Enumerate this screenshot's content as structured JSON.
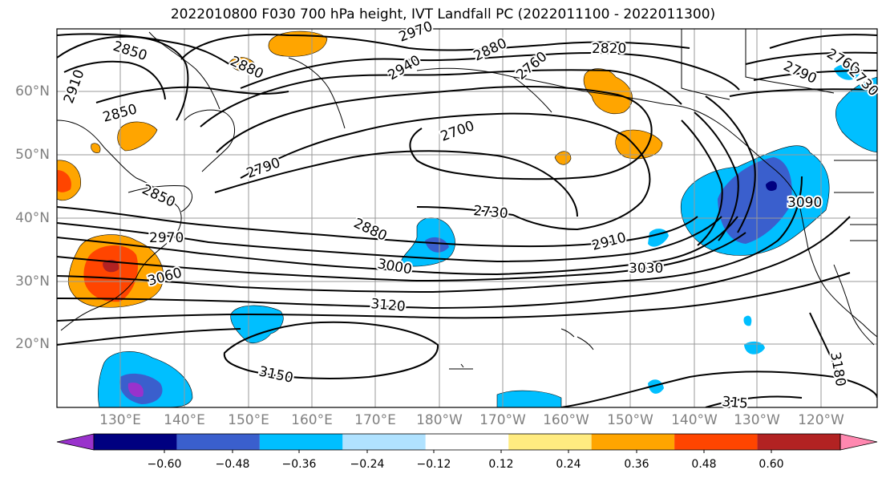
{
  "title": "2022010800 F030 700 hPa height, IVT Landfall PC (2022011100 - 2022011300)",
  "lat_labels": [
    "60°N",
    "50°N",
    "40°N",
    "30°N",
    "20°N"
  ],
  "lon_labels": [
    "130°E",
    "140°E",
    "150°E",
    "160°E",
    "170°E",
    "180°W",
    "170°W",
    "160°W",
    "150°W",
    "140°W",
    "130°W",
    "120°W"
  ],
  "contour_labels": [
    "2850",
    "2880",
    "2910",
    "2970",
    "2940",
    "2880",
    "2760",
    "2820",
    "2790",
    "2730",
    "2760",
    "2850",
    "2700",
    "2790",
    "2850",
    "2730",
    "2880",
    "2970",
    "3060",
    "3000",
    "2910",
    "3030",
    "3090",
    "3120",
    "3150",
    "3180",
    "315"
  ],
  "colorbar": {
    "ticks": [
      "−0.60",
      "−0.48",
      "−0.36",
      "−0.24",
      "−0.12",
      "0.12",
      "0.24",
      "0.36",
      "0.48",
      "0.60"
    ],
    "colors": [
      "#9932cc",
      "#000080",
      "#3a5fcd",
      "#00bfff",
      "#b0e2ff",
      "#ffffff",
      "#ffeb80",
      "#ffa500",
      "#ff4500",
      "#b22222",
      "#ff88b0"
    ]
  },
  "colors": {
    "contour": "#000000",
    "grid": "#999999",
    "coast": "#000000"
  }
}
